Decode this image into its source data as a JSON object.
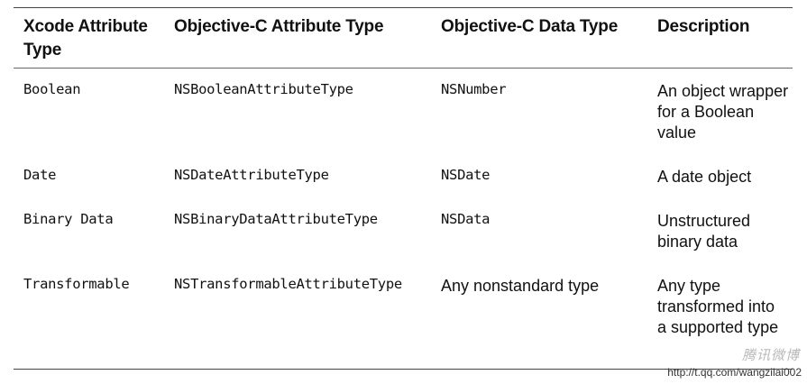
{
  "table": {
    "headers": [
      "Xcode Attribute Type",
      "Objective-C Attribute Type",
      "Objective-C Data Type",
      "Description"
    ],
    "rows": [
      {
        "xcode": "Boolean",
        "objc_attr": "NSBooleanAttributeType",
        "objc_data": "NSNumber",
        "description": "An object wrapper for a Boolean value"
      },
      {
        "xcode": "Date",
        "objc_attr": "NSDateAttributeType",
        "objc_data": "NSDate",
        "description": "A date object"
      },
      {
        "xcode": "Binary Data",
        "objc_attr": "NSBinaryDataAttributeType",
        "objc_data": "NSData",
        "description": "Unstructured binary data"
      },
      {
        "xcode": "Transformable",
        "objc_attr": "NSTransformableAttributeType",
        "objc_data": "Any nonstandard type",
        "description": "Any type transformed into a supported type"
      }
    ]
  },
  "watermark": {
    "brand": "腾讯微博",
    "url": "http://t.qq.com/wangzilai002"
  }
}
